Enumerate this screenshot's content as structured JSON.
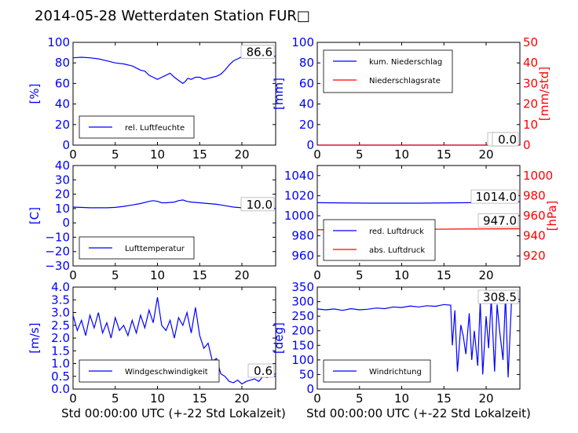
{
  "title": "2014-05-28 Wetterdaten Station FUR□",
  "x_axis_label": "Std 00:00:00 UTC (+-22 Std Lokalzeit)",
  "colors": {
    "blue": "#0000ff",
    "red": "#ff0000",
    "axis": "#000000"
  },
  "chart_data": [
    {
      "id": "humidity",
      "type": "line",
      "ylabel": "[%]",
      "ylim": [
        0,
        100
      ],
      "yticks": [
        "0",
        "20",
        "40",
        "60",
        "80",
        "100"
      ],
      "xlim": [
        0,
        24
      ],
      "xticks": [
        "0",
        "5",
        "10",
        "15",
        "20"
      ],
      "legend": [
        "rel. Luftfeuchte"
      ],
      "last_value": "86.6",
      "series": [
        {
          "name": "rel. Luftfeuchte",
          "color": "blue",
          "x": [
            0,
            1,
            2,
            3,
            4,
            5,
            6,
            7,
            8,
            8.5,
            9,
            9.5,
            10,
            10.5,
            11,
            11.5,
            12,
            12.5,
            13,
            13.3,
            13.6,
            14,
            14.5,
            15,
            15.5,
            16,
            16.5,
            17,
            17.5,
            18,
            18.5,
            19,
            19.5,
            20,
            21,
            22,
            23,
            24
          ],
          "y": [
            85,
            85.5,
            85,
            84,
            82,
            80,
            79,
            77,
            73,
            72,
            68,
            66,
            64,
            66,
            68,
            70,
            66,
            63,
            60,
            62,
            65,
            64,
            66,
            66,
            64,
            65,
            66,
            67,
            69,
            73,
            78,
            82,
            84,
            86,
            87,
            86.8,
            86.6,
            86.6
          ]
        }
      ]
    },
    {
      "id": "precipitation",
      "type": "line",
      "ylabel": "[mm]",
      "ylabel_right": "[mm/std]",
      "ylim": [
        0,
        100
      ],
      "ylim_right": [
        0,
        50
      ],
      "yticks": [
        "0",
        "20",
        "40",
        "60",
        "80",
        "100"
      ],
      "yticks_right": [
        "0",
        "10",
        "20",
        "30",
        "40",
        "50"
      ],
      "xlim": [
        0,
        24
      ],
      "xticks": [
        "0",
        "5",
        "10",
        "15",
        "20"
      ],
      "legend": [
        "kum. Niederschlag",
        "Niederschlagsrate"
      ],
      "last_value": "0.0",
      "last_value_right": "0.0",
      "series": [
        {
          "name": "kum. Niederschlag",
          "color": "blue",
          "x": [
            0,
            24
          ],
          "y": [
            0,
            0
          ]
        },
        {
          "name": "Niederschlagsrate",
          "color": "red",
          "x": [
            0,
            24
          ],
          "y": [
            0,
            0
          ]
        }
      ]
    },
    {
      "id": "temperature",
      "type": "line",
      "ylabel": "[C]",
      "ylim": [
        -30,
        40
      ],
      "yticks": [
        "−30",
        "−20",
        "−10",
        "0",
        "10",
        "20",
        "30",
        "40"
      ],
      "xlim": [
        0,
        24
      ],
      "xticks": [
        "0",
        "5",
        "10",
        "15",
        "20"
      ],
      "legend": [
        "Lufttemperatur"
      ],
      "last_value": "10.0",
      "series": [
        {
          "name": "Lufttemperatur",
          "color": "blue",
          "x": [
            0,
            2,
            4,
            5,
            6,
            7,
            8,
            9,
            9.5,
            10,
            10.5,
            11,
            12,
            12.5,
            13,
            13.5,
            14,
            15,
            16,
            17,
            18,
            19,
            20,
            21,
            22,
            24
          ],
          "y": [
            11,
            10.5,
            10.5,
            10.8,
            11.5,
            12.5,
            13.5,
            15,
            15.5,
            15,
            14,
            14,
            14.5,
            15.5,
            16,
            15,
            14.5,
            14,
            13.5,
            13,
            12,
            11,
            10.5,
            10,
            10,
            10
          ]
        }
      ]
    },
    {
      "id": "pressure",
      "type": "line",
      "ylabel_right": "[hPa]",
      "ylim": [
        950,
        1050
      ],
      "ylim_right": [
        910,
        1010
      ],
      "yticks": [
        "960",
        "980",
        "1000",
        "1020",
        "1040"
      ],
      "yticks_right": [
        "920",
        "940",
        "960",
        "980",
        "1000"
      ],
      "xlim": [
        0,
        24
      ],
      "xticks": [
        "0",
        "5",
        "10",
        "15",
        "20"
      ],
      "legend": [
        "red. Luftdruck",
        "abs. Luftdruck"
      ],
      "last_value": "1014.0",
      "last_value_right": "947.0",
      "series": [
        {
          "name": "red. Luftdruck",
          "color": "blue",
          "x": [
            0,
            6,
            12,
            18,
            24
          ],
          "y": [
            1013,
            1012.5,
            1012.5,
            1013,
            1014
          ]
        },
        {
          "name": "abs. Luftdruck",
          "color": "red",
          "axis": "right",
          "x": [
            0,
            6,
            12,
            18,
            24
          ],
          "y": [
            946,
            946.2,
            946.5,
            946.8,
            947
          ]
        }
      ]
    },
    {
      "id": "windspeed",
      "type": "line",
      "ylabel": "[m/s]",
      "ylim": [
        0,
        4
      ],
      "yticks": [
        "0.0",
        "0.5",
        "1.0",
        "1.5",
        "2.0",
        "2.5",
        "3.0",
        "3.5",
        "4.0"
      ],
      "xlim": [
        0,
        24
      ],
      "xticks": [
        "0",
        "5",
        "10",
        "15",
        "20"
      ],
      "legend": [
        "Windgeschwindigkeit"
      ],
      "last_value": "0.6",
      "series": [
        {
          "name": "Windgeschwindigkeit",
          "color": "blue",
          "x": [
            0,
            0.5,
            1,
            1.5,
            2,
            2.5,
            3,
            3.5,
            4,
            4.5,
            5,
            5.5,
            6,
            6.5,
            7,
            7.5,
            8,
            8.5,
            9,
            9.5,
            10,
            10.5,
            11,
            11.5,
            12,
            12.5,
            13,
            13.5,
            14,
            14.5,
            15,
            15.5,
            16,
            16.5,
            17,
            17.5,
            18,
            18.5,
            19,
            19.5,
            20,
            20.5,
            21,
            21.5,
            22,
            22.5,
            23,
            23.5,
            24
          ],
          "y": [
            2.9,
            2.3,
            2.7,
            2.1,
            2.9,
            2.4,
            3.0,
            2.2,
            2.6,
            2.0,
            2.8,
            2.3,
            2.5,
            2.1,
            2.7,
            2.2,
            2.9,
            2.4,
            3.1,
            2.6,
            3.6,
            2.5,
            2.3,
            2.7,
            2.0,
            2.8,
            2.5,
            3.0,
            2.2,
            3.2,
            2.1,
            1.6,
            1.8,
            1.1,
            1.2,
            0.6,
            0.5,
            0.3,
            0.25,
            0.35,
            0.2,
            0.3,
            0.35,
            0.4,
            0.3,
            0.5,
            0.45,
            0.55,
            0.6
          ]
        }
      ]
    },
    {
      "id": "winddirection",
      "type": "line",
      "ylabel": "[deg]",
      "ylim": [
        0,
        350
      ],
      "yticks": [
        "0",
        "50",
        "100",
        "150",
        "200",
        "250",
        "300",
        "350"
      ],
      "xlim": [
        0,
        24
      ],
      "xticks": [
        "0",
        "5",
        "10",
        "15",
        "20"
      ],
      "legend": [
        "Windrichtung"
      ],
      "last_value": "308.5",
      "series": [
        {
          "name": "Windrichtung",
          "color": "blue",
          "x": [
            0,
            1,
            2,
            3,
            4,
            5,
            6,
            7,
            8,
            9,
            10,
            11,
            12,
            13,
            14,
            15,
            15.8,
            16,
            16.3,
            16.6,
            17,
            17.3,
            17.6,
            18,
            18.3,
            18.6,
            19,
            19.3,
            19.6,
            20,
            20.3,
            20.6,
            21,
            21.3,
            21.6,
            22,
            22.3,
            22.6,
            23,
            23.5,
            24
          ],
          "y": [
            275,
            272,
            275,
            270,
            276,
            272,
            274,
            278,
            276,
            282,
            280,
            285,
            282,
            286,
            284,
            290,
            288,
            150,
            270,
            60,
            220,
            180,
            120,
            260,
            100,
            200,
            80,
            300,
            50,
            250,
            140,
            310,
            60,
            290,
            200,
            100,
            320,
            40,
            300,
            305,
            308.5
          ]
        }
      ]
    }
  ]
}
